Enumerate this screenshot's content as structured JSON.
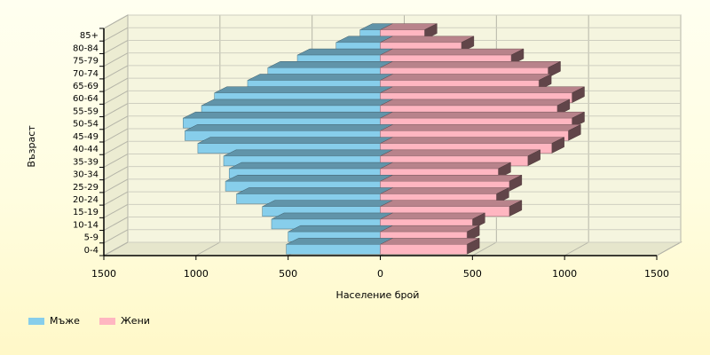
{
  "chart_data": {
    "type": "bar",
    "orientation": "horizontal-population-pyramid",
    "title": "",
    "xlabel": "Население брой",
    "ylabel": "Възраст",
    "xlim": [
      -1500,
      1500
    ],
    "x_tick_labels": [
      "1500",
      "1000",
      "500",
      "0",
      "500",
      "1000",
      "1500"
    ],
    "categories": [
      "0-4",
      "5-9",
      "10-14",
      "15-19",
      "20-24",
      "25-29",
      "30-34",
      "35-39",
      "40-44",
      "45-49",
      "50-54",
      "55-59",
      "60-64",
      "65-69",
      "70-74",
      "75-79",
      "80-84",
      "85+"
    ],
    "series": [
      {
        "name": "Мъже",
        "color": "#87ceeb",
        "values": [
          510,
          500,
          590,
          640,
          780,
          840,
          820,
          850,
          990,
          1060,
          1070,
          970,
          900,
          720,
          610,
          450,
          240,
          110
        ]
      },
      {
        "name": "Жени",
        "color": "#ffb6c1",
        "values": [
          470,
          470,
          500,
          700,
          630,
          700,
          640,
          800,
          930,
          1020,
          1040,
          960,
          1040,
          860,
          910,
          710,
          440,
          240
        ]
      }
    ],
    "grid": true,
    "legend_position": "bottom-left"
  }
}
